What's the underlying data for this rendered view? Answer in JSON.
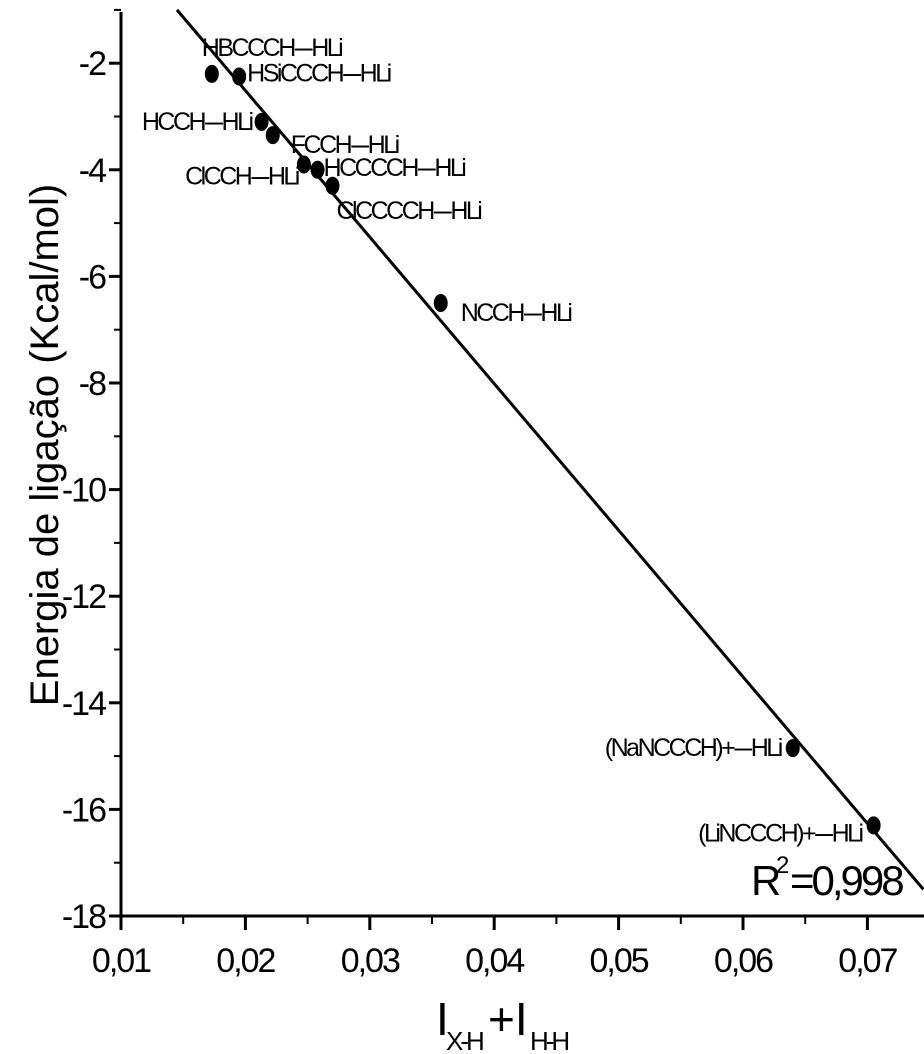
{
  "chart_data": {
    "type": "scatter",
    "ylabel": "Energia de ligação (Kcal/mol)",
    "xlabel_main": "I",
    "xlabel_sub1": "X-H",
    "xlabel_plus": "+I",
    "xlabel_sub2": "H-H",
    "xlim": [
      0.01,
      0.0745
    ],
    "ylim": [
      -18,
      -1
    ],
    "x_ticks": [
      0.01,
      0.02,
      0.03,
      0.04,
      0.05,
      0.06,
      0.07
    ],
    "x_tick_labels": [
      "0,01",
      "0,02",
      "0,03",
      "0,04",
      "0,05",
      "0,06",
      "0,07"
    ],
    "y_ticks": [
      -2,
      -4,
      -6,
      -8,
      -10,
      -12,
      -14,
      -16,
      -18
    ],
    "y_tick_labels": [
      "-2",
      "-4",
      "-6",
      "-8",
      "-10",
      "-12",
      "-14",
      "-16",
      "-18"
    ],
    "points": [
      {
        "label": "HBCCCH---HLi",
        "x": 0.0173,
        "y": -2.2
      },
      {
        "label": "HSiCCCH---HLi",
        "x": 0.0195,
        "y": -2.25
      },
      {
        "label": "HCCH---HLi",
        "x": 0.0213,
        "y": -3.1
      },
      {
        "label": "FCCH---HLi",
        "x": 0.0222,
        "y": -3.35
      },
      {
        "label": "ClCCH---HLi",
        "x": 0.0247,
        "y": -3.9
      },
      {
        "label": "HCCCCH---HLi",
        "x": 0.0258,
        "y": -4.0
      },
      {
        "label": "ClCCCCH---HLi",
        "x": 0.027,
        "y": -4.3
      },
      {
        "label": "NCCH---HLi",
        "x": 0.0357,
        "y": -6.5
      },
      {
        "label": "(NaNCCCH)+---HLi",
        "x": 0.064,
        "y": -14.85
      },
      {
        "label": "(LiNCCCH)+---HLi",
        "x": 0.0705,
        "y": -16.3
      }
    ],
    "fit_line": {
      "x": [
        0.0145,
        0.0745
      ],
      "y": [
        -1.0,
        -17.5
      ]
    },
    "r2_label": "R",
    "r2_sup": "2",
    "r2_value": "=0,998"
  }
}
